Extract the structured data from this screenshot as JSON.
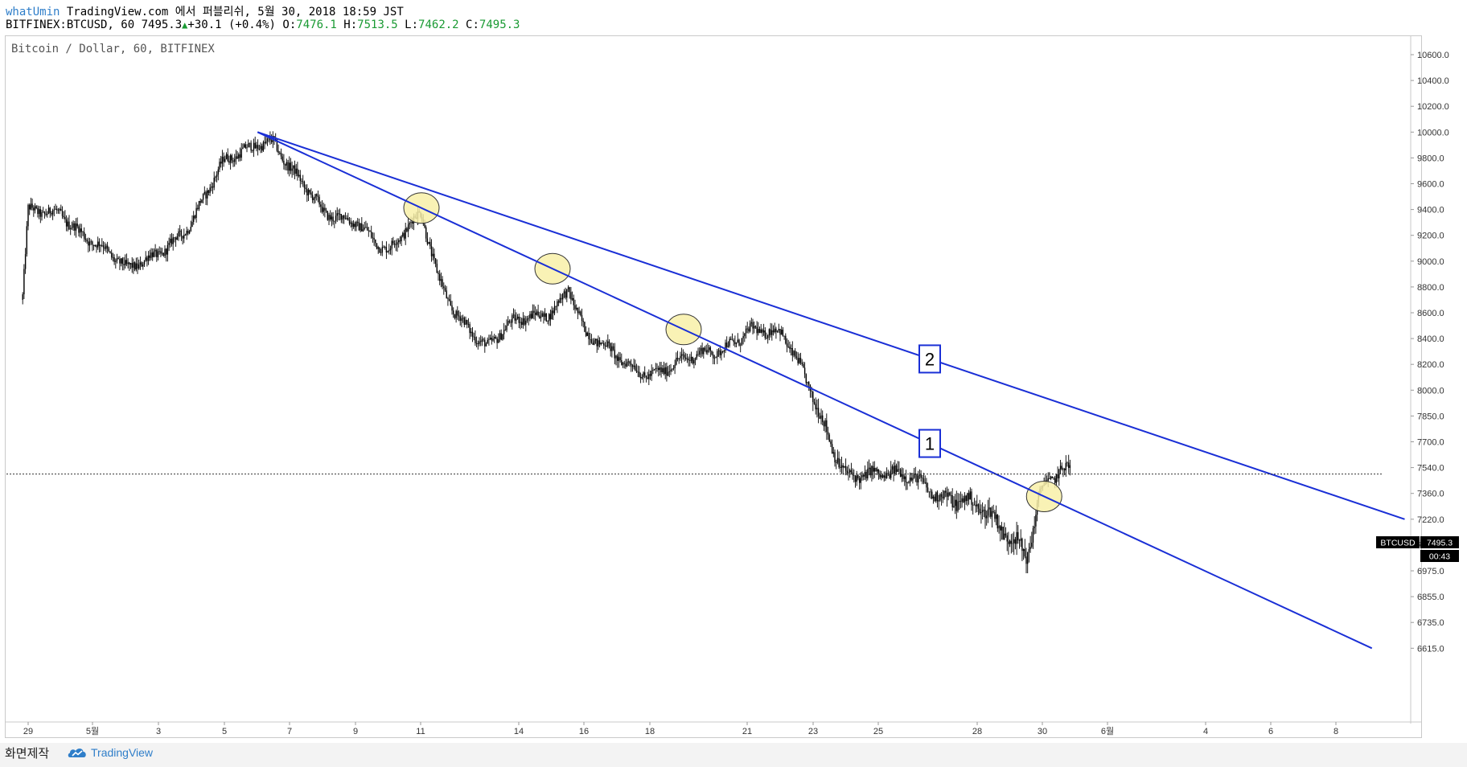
{
  "header": {
    "user": "whatUmin",
    "credit": "TradingView.com 에서 퍼블리쉬, 5월 30, 2018 18:59 JST",
    "symbol": "BITFINEX:BTCUSD, 60",
    "last": "7495.3",
    "change": "+30.1 (+0.4%)",
    "o_label": "O:",
    "o_value": "7476.1",
    "h_label": "H:",
    "h_value": "7513.5",
    "l_label": "L:",
    "l_value": "7462.2",
    "c_label": "C:",
    "c_value": "7495.3"
  },
  "chart_watermark": "Bitcoin / Dollar, 60, BITFINEX",
  "price_tag": {
    "symbol": "BTCUSD",
    "price": "7495.3",
    "countdown": "00:43"
  },
  "colors": {
    "trendline": "#1a2fd6",
    "highlight": "#f8f0a8",
    "candles": "#000000",
    "label_border": "#1a2fd6"
  },
  "annotations": {
    "label_1": "1",
    "label_2": "2"
  },
  "footer": {
    "label": "화면제작",
    "brand": "TradingView",
    "brand_icon": "tradingview-cloud-icon"
  },
  "chart_data": {
    "type": "candlestick",
    "title": "Bitcoin / Dollar, 60, BITFINEX",
    "y_ticks": [
      "10600.0",
      "10400.0",
      "10200.0",
      "10000.0",
      "9800.0",
      "9600.0",
      "9400.0",
      "9200.0",
      "9000.0",
      "8800.0",
      "8600.0",
      "8400.0",
      "8200.0",
      "8000.0",
      "7850.0",
      "7700.0",
      "7540.0",
      "7360.0",
      "7220.0",
      "7095.0",
      "6975.0",
      "6855.0",
      "6735.0",
      "6615.0"
    ],
    "x_ticks": [
      "29",
      "5월",
      "3",
      "5",
      "7",
      "9",
      "11",
      "14",
      "16",
      "18",
      "21",
      "23",
      "25",
      "28",
      "30",
      "6월",
      "4",
      "6",
      "8"
    ],
    "price_path": [
      [
        "Apr 28 20:00",
        8700
      ],
      [
        "Apr 29",
        9350
      ],
      [
        "Apr 30",
        9400
      ],
      [
        "May 1",
        9150
      ],
      [
        "May 2",
        8900
      ],
      [
        "May 3",
        9100
      ],
      [
        "May 4",
        9300
      ],
      [
        "May 5",
        9750
      ],
      [
        "May 6",
        9950
      ],
      [
        "May 6 12:00",
        9950
      ],
      [
        "May 7",
        9700
      ],
      [
        "May 8",
        9350
      ],
      [
        "May 9",
        9350
      ],
      [
        "May 10",
        9050
      ],
      [
        "May 11",
        9350
      ],
      [
        "May 11 12:00",
        8900
      ],
      [
        "May 12",
        8650
      ],
      [
        "May 13",
        8300
      ],
      [
        "May 14",
        8550
      ],
      [
        "May 15",
        8650
      ],
      [
        "May 15 12:00",
        8800
      ],
      [
        "May 16",
        8400
      ],
      [
        "May 17",
        8250
      ],
      [
        "May 18",
        8150
      ],
      [
        "May 19",
        8200
      ],
      [
        "May 20",
        8300
      ],
      [
        "May 21",
        8500
      ],
      [
        "May 22",
        8400
      ],
      [
        "May 23",
        7950
      ],
      [
        "May 24",
        7500
      ],
      [
        "May 25",
        7450
      ],
      [
        "May 26",
        7500
      ],
      [
        "May 27",
        7350
      ],
      [
        "May 28",
        7250
      ],
      [
        "May 29",
        7150
      ],
      [
        "May 29 12:00",
        7100
      ],
      [
        "May 30",
        7450
      ],
      [
        "May 30 19:00",
        7495.3
      ]
    ],
    "trendlines": [
      {
        "name": "2",
        "from": [
          "May 6",
          10000
        ],
        "to": [
          "Jun 10",
          7220
        ]
      },
      {
        "name": "1",
        "from": [
          "May 6",
          10000
        ],
        "to": [
          "Jun 9",
          6615
        ]
      }
    ],
    "highlighted_touches": [
      "May 11",
      "May 15",
      "May 19",
      "May 30"
    ],
    "last_price": 7495.3,
    "grid": false,
    "y_axis_side": "right"
  }
}
